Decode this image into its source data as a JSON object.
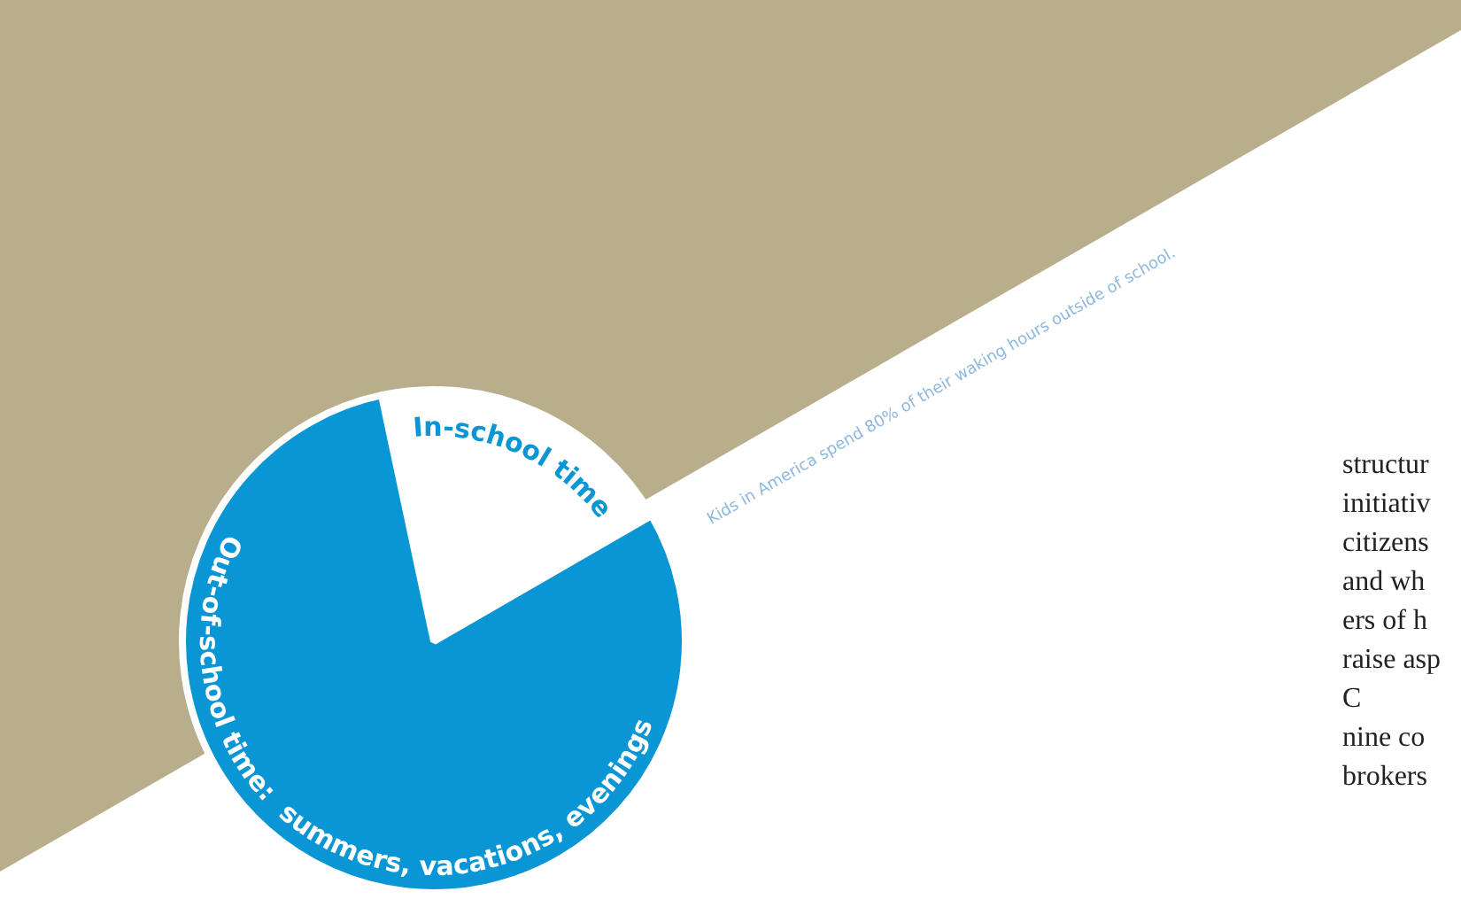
{
  "chart_data": {
    "type": "pie",
    "categories": [
      "In-school time",
      "Out-of-school time:  summers, vacations, evenings"
    ],
    "values": [
      20,
      80
    ],
    "colors": [
      "#ffffff",
      "#0a96d4"
    ],
    "legend": false,
    "annotations": [
      "Kids in America spend 80% of their waking hours outside of school.",
      "structur",
      "initiativ",
      "citizens",
      "and wh",
      "ers of h",
      "raise asp",
      "C",
      "nine co",
      "brokers"
    ]
  }
}
